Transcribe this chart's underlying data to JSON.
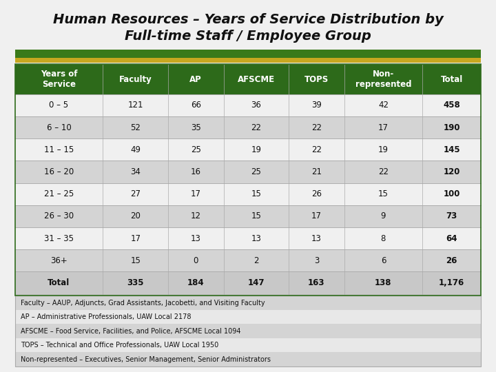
{
  "title_line1": "Human Resources – Years of Service Distribution by",
  "title_line2": "Full-time Staff / Employee Group",
  "header": [
    "Years of\nService",
    "Faculty",
    "AP",
    "AFSCME",
    "TOPS",
    "Non-\nrepresented",
    "Total"
  ],
  "rows": [
    [
      "0 – 5",
      "121",
      "66",
      "36",
      "39",
      "42",
      "458"
    ],
    [
      "6 – 10",
      "52",
      "35",
      "22",
      "22",
      "17",
      "190"
    ],
    [
      "11 – 15",
      "49",
      "25",
      "19",
      "22",
      "19",
      "145"
    ],
    [
      "16 – 20",
      "34",
      "16",
      "25",
      "21",
      "22",
      "120"
    ],
    [
      "21 – 25",
      "27",
      "17",
      "15",
      "26",
      "15",
      "100"
    ],
    [
      "26 – 30",
      "20",
      "12",
      "15",
      "17",
      "9",
      "73"
    ],
    [
      "31 – 35",
      "17",
      "13",
      "13",
      "13",
      "8",
      "64"
    ],
    [
      "36+",
      "15",
      "0",
      "2",
      "3",
      "6",
      "26"
    ]
  ],
  "total_row": [
    "Total",
    "335",
    "184",
    "147",
    "163",
    "138",
    "1,176"
  ],
  "footnotes": [
    "Faculty – AAUP, Adjuncts, Grad Assistants, Jacobetti, and Visiting Faculty",
    "AP – Administrative Professionals, UAW Local 2178",
    "AFSCME – Food Service, Facilities, and Police, AFSCME Local 1094",
    "TOPS – Technical and Office Professionals, UAW Local 1950",
    "Non-represented – Executives, Senior Management, Senior Administrators"
  ],
  "bg_color": "#d8d8d8",
  "title_bg": "#f0f0f0",
  "header_bg": "#2d6a1a",
  "header_text": "#ffffff",
  "row_odd_bg": "#d4d4d4",
  "row_even_bg": "#f0f0f0",
  "total_bg": "#c8c8c8",
  "fn_odd_bg": "#d4d4d4",
  "fn_even_bg": "#e8e8e8",
  "stripe_green": "#3a7a1a",
  "stripe_gold": "#c8a820",
  "border_color": "#2d6a1a",
  "table_border": "#aaaaaa",
  "col_widths_rel": [
    1.35,
    1.0,
    0.85,
    1.0,
    0.85,
    1.2,
    0.9
  ]
}
